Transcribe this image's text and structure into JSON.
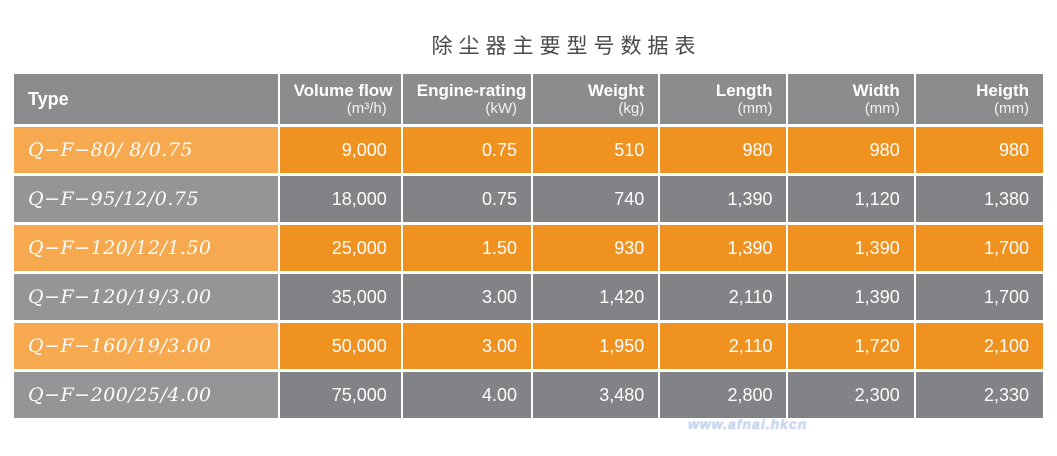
{
  "title": "除尘器主要型号数据表",
  "watermark": "www.afnai.hkcn",
  "colors": {
    "header_bg": "#8a8c8e",
    "row_orange_type": "#f7a94f",
    "row_orange_value": "#f0921f",
    "row_gray_type": "#939597",
    "row_gray_value": "#818386",
    "text": "#ffffff",
    "page_bg": "#ffffff"
  },
  "chart_data": {
    "type": "table",
    "title": "除尘器主要型号数据表",
    "columns": [
      {
        "label": "Type",
        "unit": ""
      },
      {
        "label": "Volume flow",
        "unit": "(m³/h)"
      },
      {
        "label": "Engine-rating",
        "unit": "(kW)"
      },
      {
        "label": "Weight",
        "unit": "(kg)"
      },
      {
        "label": "Length",
        "unit": "(mm)"
      },
      {
        "label": "Width",
        "unit": "(mm)"
      },
      {
        "label": "Heigth",
        "unit": "(mm)"
      }
    ],
    "rows": [
      {
        "type": "Q−F−80/ 8/0.75",
        "theme": "orange",
        "values": [
          "9,000",
          "0.75",
          "510",
          "980",
          "980",
          "980"
        ]
      },
      {
        "type": "Q−F−95/12/0.75",
        "theme": "gray",
        "values": [
          "18,000",
          "0.75",
          "740",
          "1,390",
          "1,120",
          "1,380"
        ]
      },
      {
        "type": "Q−F−120/12/1.50",
        "theme": "orange",
        "values": [
          "25,000",
          "1.50",
          "930",
          "1,390",
          "1,390",
          "1,700"
        ]
      },
      {
        "type": "Q−F−120/19/3.00",
        "theme": "gray",
        "values": [
          "35,000",
          "3.00",
          "1,420",
          "2,110",
          "1,390",
          "1,700"
        ]
      },
      {
        "type": "Q−F−160/19/3.00",
        "theme": "orange",
        "values": [
          "50,000",
          "3.00",
          "1,950",
          "2,110",
          "1,720",
          "2,100"
        ]
      },
      {
        "type": "Q−F−200/25/4.00",
        "theme": "gray",
        "values": [
          "75,000",
          "4.00",
          "3,480",
          "2,800",
          "2,300",
          "2,330"
        ]
      }
    ]
  }
}
